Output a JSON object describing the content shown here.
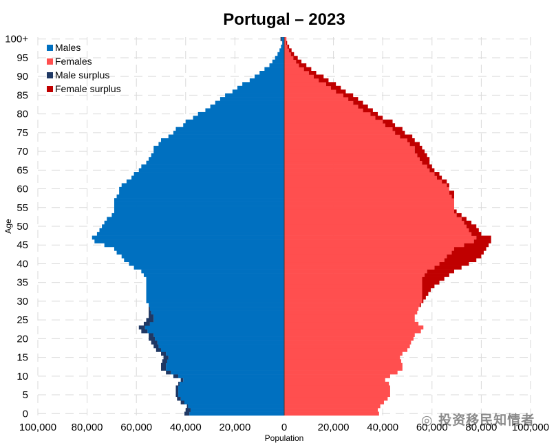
{
  "chart_data": {
    "type": "bar",
    "orientation": "horizontal-population-pyramid",
    "title": "Portugal – 2023",
    "xlabel": "Population",
    "ylabel": "Age",
    "xlim": [
      -100000,
      100000
    ],
    "x_ticks": [
      {
        "value": -100000,
        "label": "100,000"
      },
      {
        "value": -80000,
        "label": "80,000"
      },
      {
        "value": -60000,
        "label": "60,000"
      },
      {
        "value": -40000,
        "label": "40,000"
      },
      {
        "value": -20000,
        "label": "20,000"
      },
      {
        "value": 0,
        "label": "0"
      },
      {
        "value": 20000,
        "label": "20,000"
      },
      {
        "value": 40000,
        "label": "40,000"
      },
      {
        "value": 60000,
        "label": "60,000"
      },
      {
        "value": 80000,
        "label": "80,000"
      },
      {
        "value": 100000,
        "label": "100,000"
      }
    ],
    "y_ticks": [
      {
        "value": 0,
        "label": "0"
      },
      {
        "value": 5,
        "label": "5"
      },
      {
        "value": 10,
        "label": "10"
      },
      {
        "value": 15,
        "label": "15"
      },
      {
        "value": 20,
        "label": "20"
      },
      {
        "value": 25,
        "label": "25"
      },
      {
        "value": 30,
        "label": "30"
      },
      {
        "value": 35,
        "label": "35"
      },
      {
        "value": 40,
        "label": "40"
      },
      {
        "value": 45,
        "label": "45"
      },
      {
        "value": 50,
        "label": "50"
      },
      {
        "value": 55,
        "label": "55"
      },
      {
        "value": 60,
        "label": "60"
      },
      {
        "value": 65,
        "label": "65"
      },
      {
        "value": 70,
        "label": "70"
      },
      {
        "value": 75,
        "label": "75"
      },
      {
        "value": 80,
        "label": "80"
      },
      {
        "value": 85,
        "label": "85"
      },
      {
        "value": 90,
        "label": "90"
      },
      {
        "value": 95,
        "label": "95"
      },
      {
        "value": 100,
        "label": "100+"
      }
    ],
    "grid": true,
    "legend_position": "top-left",
    "legend": [
      {
        "name": "Males",
        "color": "#0070c0"
      },
      {
        "name": "Females",
        "color": "#ff4f4f"
      },
      {
        "name": "Male surplus",
        "color": "#1f3864"
      },
      {
        "name": "Female surplus",
        "color": "#c00000"
      }
    ],
    "ages": [
      0,
      1,
      2,
      3,
      4,
      5,
      6,
      7,
      8,
      9,
      10,
      11,
      12,
      13,
      14,
      15,
      16,
      17,
      18,
      19,
      20,
      21,
      22,
      23,
      24,
      25,
      26,
      27,
      28,
      29,
      30,
      31,
      32,
      33,
      34,
      35,
      36,
      37,
      38,
      39,
      40,
      41,
      42,
      43,
      44,
      45,
      46,
      47,
      48,
      49,
      50,
      51,
      52,
      53,
      54,
      55,
      56,
      57,
      58,
      59,
      60,
      61,
      62,
      63,
      64,
      65,
      66,
      67,
      68,
      69,
      70,
      71,
      72,
      73,
      74,
      75,
      76,
      77,
      78,
      79,
      80,
      81,
      82,
      83,
      84,
      85,
      86,
      87,
      88,
      89,
      90,
      91,
      92,
      93,
      94,
      95,
      96,
      97,
      98,
      99,
      100
    ],
    "series": [
      {
        "name": "Males",
        "values": [
          40500,
          40000,
          39500,
          42000,
          43500,
          44000,
          44000,
          44000,
          43000,
          42000,
          45000,
          48000,
          50000,
          50000,
          49500,
          49000,
          50000,
          52000,
          53000,
          54000,
          55000,
          55000,
          58000,
          59000,
          57000,
          56000,
          55000,
          55000,
          55000,
          55000,
          56000,
          56000,
          56000,
          56000,
          56000,
          56000,
          56000,
          57000,
          58000,
          61000,
          63000,
          65000,
          66000,
          68000,
          69000,
          73000,
          77000,
          78000,
          76000,
          75000,
          74000,
          73000,
          72000,
          70000,
          69000,
          69000,
          69000,
          69000,
          68000,
          67000,
          67000,
          66000,
          64000,
          62000,
          61000,
          59000,
          58000,
          56000,
          55000,
          54000,
          53000,
          53000,
          51000,
          50000,
          47000,
          45000,
          44000,
          41000,
          40000,
          37000,
          35000,
          32000,
          30000,
          28000,
          26000,
          24000,
          21000,
          19000,
          17000,
          14000,
          12000,
          10000,
          8000,
          6000,
          4800,
          3700,
          2700,
          1900,
          1300,
          800,
          1500
        ]
      },
      {
        "name": "Females",
        "values": [
          38500,
          38000,
          39000,
          40500,
          42000,
          43000,
          43000,
          43000,
          42500,
          41000,
          43000,
          46000,
          48000,
          48000,
          47500,
          47000,
          48000,
          50000,
          51000,
          51500,
          52500,
          53000,
          55500,
          56500,
          54500,
          53000,
          53000,
          54000,
          54500,
          55500,
          56500,
          57500,
          58500,
          59500,
          61000,
          63000,
          65000,
          67000,
          69000,
          72000,
          75000,
          78000,
          80000,
          81000,
          82000,
          83000,
          84000,
          84000,
          80000,
          79000,
          78000,
          76000,
          74000,
          72000,
          70000,
          69000,
          69000,
          69000,
          69000,
          69000,
          67000,
          67000,
          66000,
          64000,
          63000,
          61000,
          60000,
          59000,
          59000,
          58000,
          57000,
          56000,
          55000,
          53000,
          52000,
          49000,
          48000,
          45000,
          44000,
          40000,
          38000,
          36000,
          34000,
          32000,
          30000,
          28000,
          25000,
          23000,
          21000,
          18000,
          16000,
          13000,
          11000,
          9000,
          7000,
          5500,
          4000,
          3000,
          2000,
          1200,
          900
        ]
      }
    ]
  }
}
